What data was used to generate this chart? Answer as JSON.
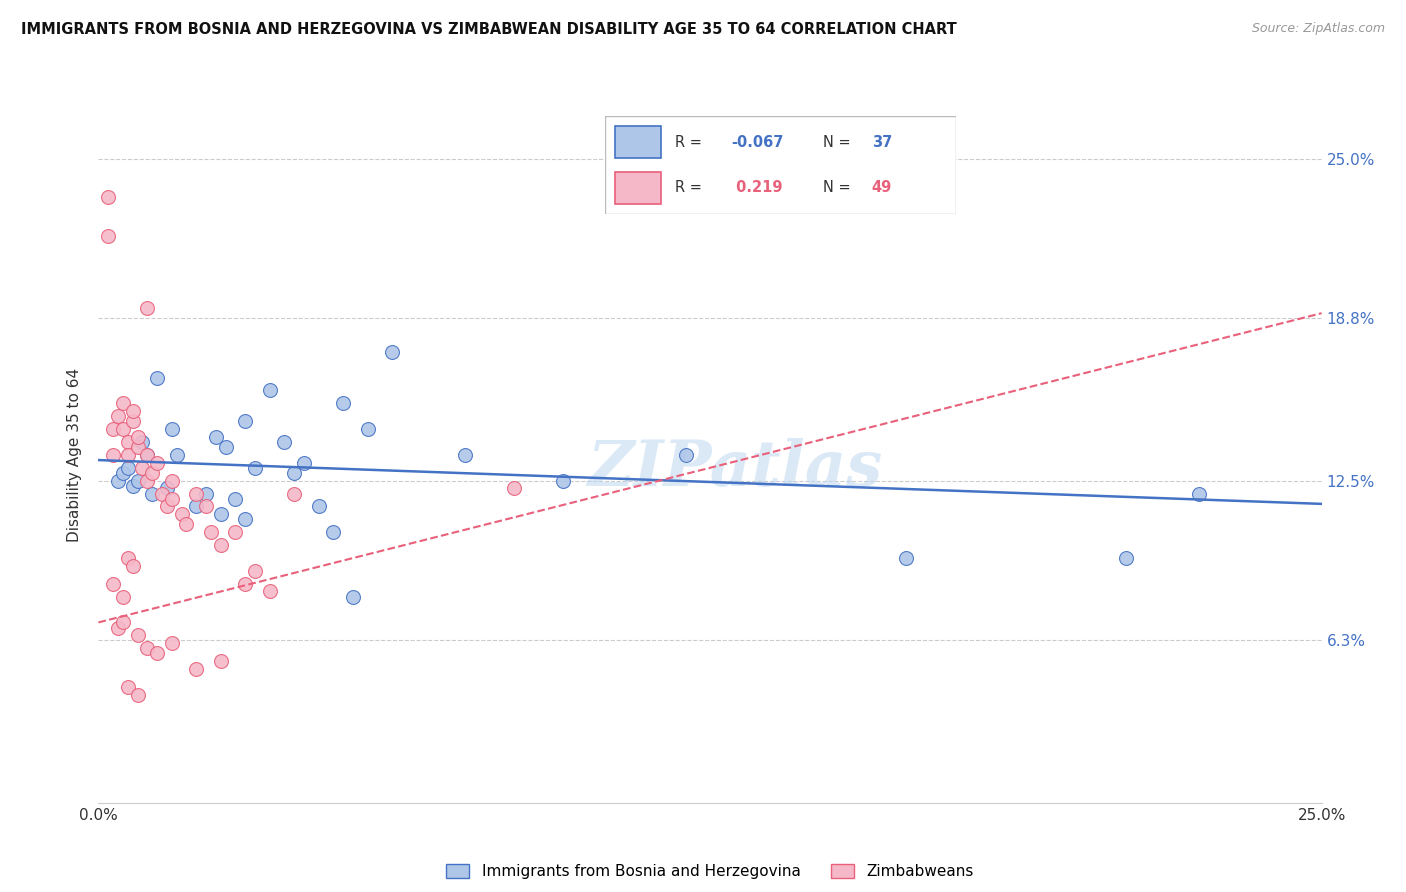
{
  "title": "IMMIGRANTS FROM BOSNIA AND HERZEGOVINA VS ZIMBABWEAN DISABILITY AGE 35 TO 64 CORRELATION CHART",
  "source": "Source: ZipAtlas.com",
  "ylabel": "Disability Age 35 to 64",
  "ytick_labels": [
    "6.3%",
    "12.5%",
    "18.8%",
    "25.0%"
  ],
  "ytick_values": [
    6.3,
    12.5,
    18.8,
    25.0
  ],
  "xlim": [
    0.0,
    25.0
  ],
  "ylim": [
    0.0,
    27.0
  ],
  "legend_label1": "Immigrants from Bosnia and Herzegovina",
  "legend_label2": "Zimbabweans",
  "r1": "-0.067",
  "n1": "37",
  "r2": "0.219",
  "n2": "49",
  "blue_color": "#aec6e8",
  "pink_color": "#f5b8c8",
  "blue_line_color": "#4472c4",
  "pink_line_color": "#e8607a",
  "blue_scatter_x": [
    0.4,
    0.5,
    0.6,
    0.7,
    0.8,
    0.9,
    1.0,
    1.1,
    1.2,
    1.4,
    1.5,
    1.6,
    2.0,
    2.2,
    2.4,
    2.6,
    2.8,
    3.0,
    3.2,
    3.5,
    3.8,
    4.0,
    4.2,
    4.5,
    5.0,
    5.5,
    6.0,
    7.5,
    9.5,
    12.0,
    16.5,
    21.0,
    22.5,
    2.5,
    3.0,
    4.8,
    5.2
  ],
  "blue_scatter_y": [
    12.5,
    12.8,
    13.0,
    12.3,
    12.5,
    14.0,
    13.5,
    12.0,
    16.5,
    12.2,
    14.5,
    13.5,
    11.5,
    12.0,
    14.2,
    13.8,
    11.8,
    14.8,
    13.0,
    16.0,
    14.0,
    12.8,
    13.2,
    11.5,
    15.5,
    14.5,
    17.5,
    13.5,
    12.5,
    13.5,
    9.5,
    9.5,
    12.0,
    11.2,
    11.0,
    10.5,
    8.0
  ],
  "pink_scatter_x": [
    0.2,
    0.2,
    0.3,
    0.3,
    0.4,
    0.5,
    0.5,
    0.6,
    0.6,
    0.7,
    0.7,
    0.8,
    0.8,
    0.9,
    1.0,
    1.0,
    1.1,
    1.2,
    1.3,
    1.4,
    1.5,
    1.5,
    1.7,
    1.8,
    2.0,
    2.2,
    2.3,
    2.5,
    2.8,
    3.0,
    3.2,
    3.5,
    4.0,
    0.3,
    0.5,
    0.6,
    0.7,
    0.8,
    1.0,
    1.2,
    1.5,
    2.0,
    2.5,
    0.4,
    0.5,
    0.6,
    0.8,
    1.0,
    8.5
  ],
  "pink_scatter_y": [
    23.5,
    22.0,
    14.5,
    13.5,
    15.0,
    14.5,
    15.5,
    14.0,
    13.5,
    14.8,
    15.2,
    13.8,
    14.2,
    13.0,
    13.5,
    12.5,
    12.8,
    13.2,
    12.0,
    11.5,
    11.8,
    12.5,
    11.2,
    10.8,
    12.0,
    11.5,
    10.5,
    10.0,
    10.5,
    8.5,
    9.0,
    8.2,
    12.0,
    8.5,
    8.0,
    9.5,
    9.2,
    6.5,
    6.0,
    5.8,
    6.2,
    5.2,
    5.5,
    6.8,
    7.0,
    4.5,
    4.2,
    19.2,
    12.2
  ],
  "blue_line_x0": 0.0,
  "blue_line_x1": 25.0,
  "blue_line_y0": 13.3,
  "blue_line_y1": 11.6,
  "pink_line_x0": 0.0,
  "pink_line_x1": 25.0,
  "pink_line_y0": 7.0,
  "pink_line_y1": 19.0,
  "watermark": "ZIPatlas",
  "background_color": "#ffffff",
  "grid_color": "#cccccc"
}
